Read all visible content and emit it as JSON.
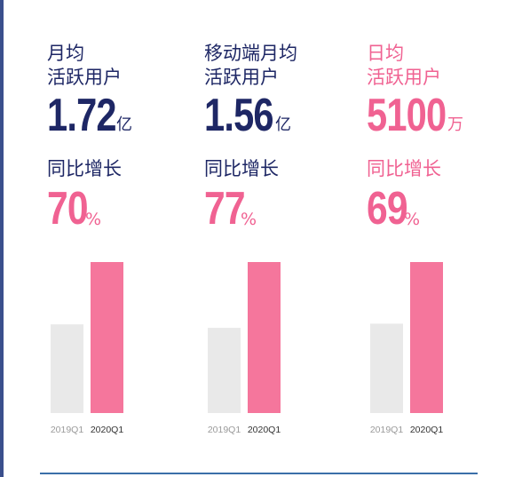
{
  "chart_data": [
    {
      "type": "bar",
      "label_line1": "月均",
      "label_line2": "活跃用户",
      "metric_value": "1.72",
      "metric_unit": "亿",
      "growth_label": "同比增长",
      "growth_value": "70",
      "growth_unit": "%",
      "categories": [
        "2019Q1",
        "2020Q1"
      ],
      "values": [
        1.01,
        1.72
      ],
      "ylim": [
        0,
        1.72
      ]
    },
    {
      "type": "bar",
      "label_line1": "移动端月均",
      "label_line2": "活跃用户",
      "metric_value": "1.56",
      "metric_unit": "亿",
      "growth_label": "同比增长",
      "growth_value": "77",
      "growth_unit": "%",
      "categories": [
        "2019Q1",
        "2020Q1"
      ],
      "values": [
        0.88,
        1.56
      ],
      "ylim": [
        0,
        1.56
      ]
    },
    {
      "type": "bar",
      "label_line1": "日均",
      "label_line2": "活跃用户",
      "metric_value": "5100",
      "metric_unit": "万",
      "growth_label": "同比增长",
      "growth_value": "69",
      "growth_unit": "%",
      "categories": [
        "2019Q1",
        "2020Q1"
      ],
      "values": [
        3018,
        5100
      ],
      "ylim": [
        0,
        5100
      ]
    }
  ],
  "colors": {
    "text": "#1e2765",
    "accent": "#f06292",
    "bar_prev": "#e9e9e9",
    "bar_curr": "#f5769c",
    "tick_prev": "#9a9a9a",
    "tick_curr": "#333333"
  }
}
